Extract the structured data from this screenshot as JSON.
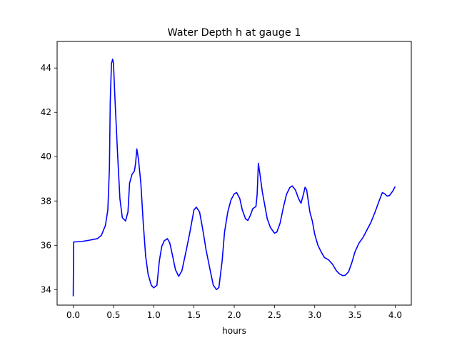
{
  "chart_data": {
    "type": "line",
    "title": "Water Depth h at gauge 1",
    "xlabel": "hours",
    "ylabel": "",
    "xlim": [
      -0.2,
      4.2
    ],
    "ylim": [
      33.3,
      45.2
    ],
    "xticks": [
      0.0,
      0.5,
      1.0,
      1.5,
      2.0,
      2.5,
      3.0,
      3.5,
      4.0
    ],
    "xtick_labels": [
      "0.0",
      "0.5",
      "1.0",
      "1.5",
      "2.0",
      "2.5",
      "3.0",
      "3.5",
      "4.0"
    ],
    "yticks": [
      34,
      36,
      38,
      40,
      42,
      44
    ],
    "ytick_labels": [
      "34",
      "36",
      "38",
      "40",
      "42",
      "44"
    ],
    "grid": false,
    "series": [
      {
        "color": "#0000ff",
        "points": [
          [
            0.0,
            33.7
          ],
          [
            0.005,
            36.15
          ],
          [
            0.1,
            36.17
          ],
          [
            0.2,
            36.23
          ],
          [
            0.3,
            36.3
          ],
          [
            0.35,
            36.45
          ],
          [
            0.4,
            36.9
          ],
          [
            0.43,
            37.6
          ],
          [
            0.45,
            39.5
          ],
          [
            0.46,
            42.5
          ],
          [
            0.475,
            44.2
          ],
          [
            0.49,
            44.4
          ],
          [
            0.5,
            44.2
          ],
          [
            0.52,
            42.5
          ],
          [
            0.55,
            40.2
          ],
          [
            0.58,
            38.1
          ],
          [
            0.61,
            37.25
          ],
          [
            0.65,
            37.1
          ],
          [
            0.68,
            37.5
          ],
          [
            0.7,
            38.8
          ],
          [
            0.73,
            39.2
          ],
          [
            0.76,
            39.35
          ],
          [
            0.775,
            39.7
          ],
          [
            0.79,
            40.35
          ],
          [
            0.81,
            39.9
          ],
          [
            0.84,
            38.8
          ],
          [
            0.87,
            37.0
          ],
          [
            0.9,
            35.5
          ],
          [
            0.93,
            34.7
          ],
          [
            0.97,
            34.2
          ],
          [
            1.0,
            34.08
          ],
          [
            1.04,
            34.2
          ],
          [
            1.07,
            35.3
          ],
          [
            1.1,
            35.95
          ],
          [
            1.13,
            36.2
          ],
          [
            1.17,
            36.3
          ],
          [
            1.2,
            36.1
          ],
          [
            1.23,
            35.6
          ],
          [
            1.27,
            34.9
          ],
          [
            1.31,
            34.6
          ],
          [
            1.35,
            34.85
          ],
          [
            1.4,
            35.7
          ],
          [
            1.45,
            36.6
          ],
          [
            1.5,
            37.6
          ],
          [
            1.53,
            37.72
          ],
          [
            1.57,
            37.5
          ],
          [
            1.61,
            36.7
          ],
          [
            1.65,
            35.8
          ],
          [
            1.7,
            34.9
          ],
          [
            1.74,
            34.2
          ],
          [
            1.78,
            34.0
          ],
          [
            1.81,
            34.1
          ],
          [
            1.85,
            35.3
          ],
          [
            1.88,
            36.6
          ],
          [
            1.92,
            37.5
          ],
          [
            1.96,
            38.05
          ],
          [
            2.0,
            38.32
          ],
          [
            2.03,
            38.38
          ],
          [
            2.07,
            38.1
          ],
          [
            2.1,
            37.6
          ],
          [
            2.14,
            37.2
          ],
          [
            2.17,
            37.12
          ],
          [
            2.2,
            37.35
          ],
          [
            2.23,
            37.65
          ],
          [
            2.27,
            37.75
          ],
          [
            2.285,
            38.3
          ],
          [
            2.3,
            39.7
          ],
          [
            2.32,
            39.2
          ],
          [
            2.35,
            38.4
          ],
          [
            2.38,
            37.8
          ],
          [
            2.41,
            37.2
          ],
          [
            2.45,
            36.8
          ],
          [
            2.5,
            36.55
          ],
          [
            2.53,
            36.6
          ],
          [
            2.57,
            37.0
          ],
          [
            2.61,
            37.7
          ],
          [
            2.65,
            38.3
          ],
          [
            2.69,
            38.6
          ],
          [
            2.72,
            38.68
          ],
          [
            2.76,
            38.5
          ],
          [
            2.8,
            38.1
          ],
          [
            2.83,
            37.9
          ],
          [
            2.86,
            38.3
          ],
          [
            2.88,
            38.62
          ],
          [
            2.9,
            38.5
          ],
          [
            2.94,
            37.5
          ],
          [
            2.97,
            37.1
          ],
          [
            3.0,
            36.5
          ],
          [
            3.04,
            36.0
          ],
          [
            3.08,
            35.7
          ],
          [
            3.12,
            35.45
          ],
          [
            3.17,
            35.35
          ],
          [
            3.22,
            35.15
          ],
          [
            3.27,
            34.85
          ],
          [
            3.31,
            34.7
          ],
          [
            3.35,
            34.63
          ],
          [
            3.38,
            34.65
          ],
          [
            3.42,
            34.8
          ],
          [
            3.46,
            35.2
          ],
          [
            3.5,
            35.7
          ],
          [
            3.55,
            36.1
          ],
          [
            3.6,
            36.35
          ],
          [
            3.65,
            36.7
          ],
          [
            3.7,
            37.05
          ],
          [
            3.75,
            37.5
          ],
          [
            3.8,
            38.0
          ],
          [
            3.84,
            38.38
          ],
          [
            3.87,
            38.32
          ],
          [
            3.9,
            38.22
          ],
          [
            3.93,
            38.25
          ],
          [
            3.97,
            38.45
          ],
          [
            4.0,
            38.65
          ]
        ]
      }
    ]
  }
}
